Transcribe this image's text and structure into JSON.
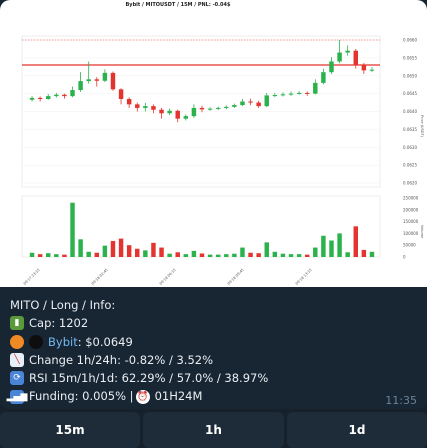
{
  "message": {
    "time": "11:35",
    "info": {
      "header": "MITO / Long / Info:",
      "cap": "Cap: 1202",
      "exchange": "Bybit",
      "price": ": $0.0649",
      "change": "Change 1h/24h: -0.82% / 3.52%",
      "rsi": "RSI 15m/1h/1d: 62.29% / 57.0% / 38.97%",
      "funding": "Funding: 0.005% | ",
      "funding_time": "01H24M"
    },
    "icons": {
      "cap": "battery-icon",
      "price_a": "orange-circle-icon",
      "price_b": "black-circle-icon",
      "change": "chart-decreasing-icon",
      "rsi": "refresh-icon",
      "funding": "signal-bars-icon",
      "clock": "alarm-clock-icon"
    }
  },
  "buttons": [
    "15m",
    "1h",
    "1d"
  ],
  "chart_data": {
    "type": "candlestick",
    "title": "Bybit / MITOUSDT / 15M / PNL: -0.04$",
    "price_axis": [
      "0.0660",
      "0.0655",
      "0.0650",
      "0.0645",
      "0.0640",
      "0.0635",
      "0.0630",
      "0.0625",
      "0.0620"
    ],
    "volume_axis": [
      "250000",
      "200000",
      "150000",
      "100000",
      "50000",
      "0"
    ],
    "time_axis": [
      "09-17 23:15",
      "09-18 02:45",
      "09-18 06:15",
      "09-18 09:45",
      "09-18 13:15"
    ],
    "horizontal_lines": [
      0.0653
    ],
    "candles": [
      {
        "o": 0.06433,
        "c": 0.06438,
        "h": 0.06443,
        "l": 0.06428,
        "v": 18000
      },
      {
        "o": 0.06438,
        "c": 0.06435,
        "h": 0.06442,
        "l": 0.06428,
        "v": 12000
      },
      {
        "o": 0.06435,
        "c": 0.06443,
        "h": 0.06449,
        "l": 0.06433,
        "v": 16000
      },
      {
        "o": 0.06443,
        "c": 0.06447,
        "h": 0.06452,
        "l": 0.06439,
        "v": 12000
      },
      {
        "o": 0.06447,
        "c": 0.06443,
        "h": 0.0645,
        "l": 0.06436,
        "v": 10000
      },
      {
        "o": 0.06443,
        "c": 0.0646,
        "h": 0.0647,
        "l": 0.0644,
        "v": 230000
      },
      {
        "o": 0.0646,
        "c": 0.06485,
        "h": 0.0651,
        "l": 0.06455,
        "v": 75000
      },
      {
        "o": 0.06485,
        "c": 0.0649,
        "h": 0.0654,
        "l": 0.06478,
        "v": 22000
      },
      {
        "o": 0.0649,
        "c": 0.06486,
        "h": 0.06496,
        "l": 0.0647,
        "v": 18000
      },
      {
        "o": 0.06486,
        "c": 0.06508,
        "h": 0.06518,
        "l": 0.06482,
        "v": 48000
      },
      {
        "o": 0.06508,
        "c": 0.06462,
        "h": 0.06512,
        "l": 0.06458,
        "v": 68000
      },
      {
        "o": 0.06462,
        "c": 0.06435,
        "h": 0.06465,
        "l": 0.0642,
        "v": 78000
      },
      {
        "o": 0.06435,
        "c": 0.0642,
        "h": 0.0644,
        "l": 0.0641,
        "v": 50000
      },
      {
        "o": 0.0642,
        "c": 0.0641,
        "h": 0.06425,
        "l": 0.064,
        "v": 35000
      },
      {
        "o": 0.0641,
        "c": 0.06415,
        "h": 0.06424,
        "l": 0.064,
        "v": 28000
      },
      {
        "o": 0.06415,
        "c": 0.06405,
        "h": 0.0642,
        "l": 0.06395,
        "v": 60000
      },
      {
        "o": 0.06405,
        "c": 0.06395,
        "h": 0.0641,
        "l": 0.0638,
        "v": 40000
      },
      {
        "o": 0.06395,
        "c": 0.06402,
        "h": 0.06408,
        "l": 0.0639,
        "v": 14000
      },
      {
        "o": 0.06402,
        "c": 0.0638,
        "h": 0.06405,
        "l": 0.0637,
        "v": 20000
      },
      {
        "o": 0.0638,
        "c": 0.06387,
        "h": 0.06392,
        "l": 0.06375,
        "v": 12000
      },
      {
        "o": 0.06387,
        "c": 0.0641,
        "h": 0.0642,
        "l": 0.06382,
        "v": 26000
      },
      {
        "o": 0.0641,
        "c": 0.06406,
        "h": 0.06416,
        "l": 0.06398,
        "v": 15000
      },
      {
        "o": 0.06406,
        "c": 0.06408,
        "h": 0.06412,
        "l": 0.06402,
        "v": 10000
      },
      {
        "o": 0.06408,
        "c": 0.0641,
        "h": 0.06414,
        "l": 0.06404,
        "v": 10000
      },
      {
        "o": 0.0641,
        "c": 0.06413,
        "h": 0.06417,
        "l": 0.06406,
        "v": 12000
      },
      {
        "o": 0.06413,
        "c": 0.06418,
        "h": 0.06422,
        "l": 0.0641,
        "v": 14000
      },
      {
        "o": 0.06418,
        "c": 0.06428,
        "h": 0.06435,
        "l": 0.06415,
        "v": 40000
      },
      {
        "o": 0.06428,
        "c": 0.06425,
        "h": 0.06436,
        "l": 0.06418,
        "v": 18000
      },
      {
        "o": 0.06425,
        "c": 0.06415,
        "h": 0.0643,
        "l": 0.0641,
        "v": 16000
      },
      {
        "o": 0.06415,
        "c": 0.06445,
        "h": 0.06452,
        "l": 0.06412,
        "v": 62000
      },
      {
        "o": 0.06445,
        "c": 0.06446,
        "h": 0.06452,
        "l": 0.0644,
        "v": 22000
      },
      {
        "o": 0.06446,
        "c": 0.06448,
        "h": 0.06454,
        "l": 0.06442,
        "v": 14000
      },
      {
        "o": 0.06448,
        "c": 0.0645,
        "h": 0.06456,
        "l": 0.06444,
        "v": 12000
      },
      {
        "o": 0.0645,
        "c": 0.06452,
        "h": 0.06457,
        "l": 0.06447,
        "v": 12000
      },
      {
        "o": 0.06452,
        "c": 0.0645,
        "h": 0.06456,
        "l": 0.06444,
        "v": 10000
      },
      {
        "o": 0.0645,
        "c": 0.0648,
        "h": 0.0649,
        "l": 0.06448,
        "v": 40000
      },
      {
        "o": 0.0648,
        "c": 0.0651,
        "h": 0.0652,
        "l": 0.06476,
        "v": 90000
      },
      {
        "o": 0.0651,
        "c": 0.0654,
        "h": 0.06552,
        "l": 0.06505,
        "v": 70000
      },
      {
        "o": 0.0654,
        "c": 0.06565,
        "h": 0.066,
        "l": 0.06535,
        "v": 100000
      },
      {
        "o": 0.06565,
        "c": 0.0657,
        "h": 0.06585,
        "l": 0.06556,
        "v": 20000
      },
      {
        "o": 0.0657,
        "c": 0.0653,
        "h": 0.06575,
        "l": 0.0652,
        "v": 130000
      },
      {
        "o": 0.0653,
        "c": 0.06515,
        "h": 0.06536,
        "l": 0.06505,
        "v": 30000
      },
      {
        "o": 0.06515,
        "c": 0.06517,
        "h": 0.06524,
        "l": 0.0651,
        "v": 22000
      }
    ]
  }
}
